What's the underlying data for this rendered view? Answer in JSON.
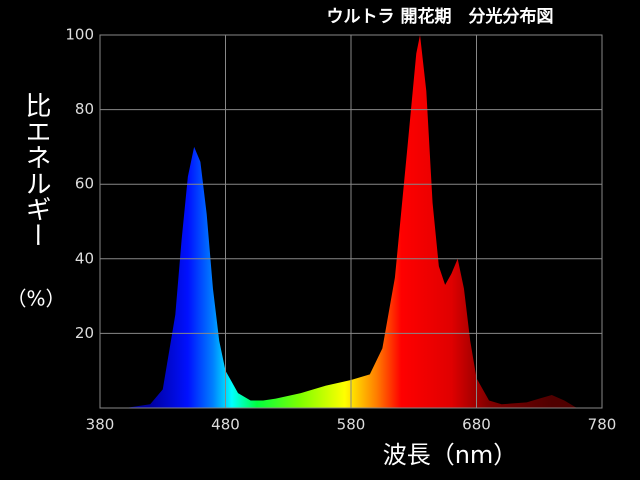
{
  "chart_data": {
    "type": "area",
    "title": "ウルトラ 開花期　分光分布図",
    "x_label": "波長（nm）",
    "y_label": "比エネルギー",
    "y_unit": "（%）",
    "x": [
      400,
      420,
      430,
      440,
      445,
      450,
      455,
      460,
      465,
      470,
      475,
      480,
      490,
      500,
      510,
      520,
      540,
      560,
      580,
      595,
      605,
      615,
      625,
      632,
      635,
      640,
      645,
      650,
      655,
      660,
      665,
      670,
      675,
      680,
      690,
      700,
      720,
      730,
      740,
      750,
      760
    ],
    "values": [
      0,
      1,
      5,
      25,
      45,
      62,
      70,
      66,
      52,
      32,
      18,
      10,
      4,
      2,
      2,
      2.5,
      4,
      6,
      7.5,
      9,
      16,
      35,
      70,
      95,
      100,
      85,
      55,
      38,
      33,
      36,
      40,
      32,
      18,
      8,
      2,
      1,
      1.5,
      2.5,
      3.5,
      2,
      0
    ],
    "xlim": [
      380,
      780
    ],
    "xticks": [
      380,
      480,
      580,
      680,
      780
    ],
    "ylim": [
      0,
      100
    ],
    "yticks": [
      20,
      40,
      60,
      80,
      100
    ],
    "grid": true
  }
}
